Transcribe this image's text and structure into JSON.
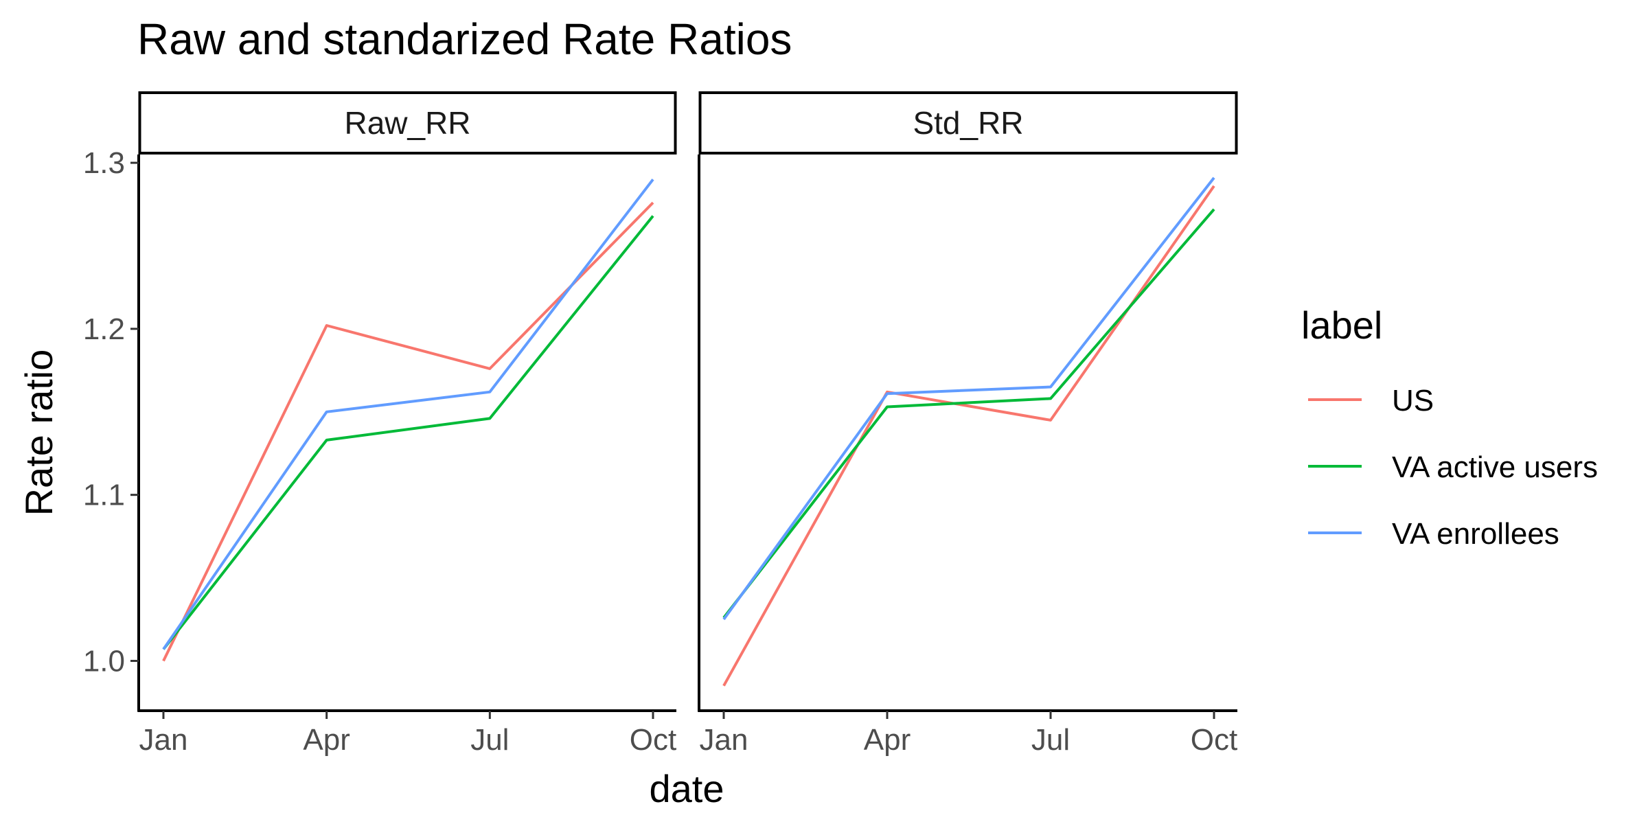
{
  "chart_data": {
    "type": "line",
    "title": "Raw and standarized Rate Ratios",
    "xlabel": "date",
    "ylabel": "Rate ratio",
    "x_ticks": [
      "Jan",
      "Apr",
      "Jul",
      "Oct"
    ],
    "y_ticks": [
      "1.0",
      "1.1",
      "1.2",
      "1.3"
    ],
    "ylim": [
      0.97,
      1.305
    ],
    "grid": false,
    "legend": {
      "title": "label",
      "position": "right"
    },
    "colors": {
      "US": "#F8766D",
      "VA active users": "#00BA38",
      "VA enrollees": "#619CFF"
    },
    "panels": [
      {
        "strip": "Raw_RR",
        "series": [
          {
            "name": "US",
            "values": [
              1.0,
              1.202,
              1.176,
              1.276
            ]
          },
          {
            "name": "VA active users",
            "values": [
              1.007,
              1.133,
              1.146,
              1.268
            ]
          },
          {
            "name": "VA enrollees",
            "values": [
              1.007,
              1.15,
              1.162,
              1.29
            ]
          }
        ]
      },
      {
        "strip": "Std_RR",
        "series": [
          {
            "name": "US",
            "values": [
              0.985,
              1.162,
              1.145,
              1.286
            ]
          },
          {
            "name": "VA active users",
            "values": [
              1.026,
              1.153,
              1.158,
              1.272
            ]
          },
          {
            "name": "VA enrollees",
            "values": [
              1.025,
              1.161,
              1.165,
              1.291
            ]
          }
        ]
      }
    ]
  }
}
